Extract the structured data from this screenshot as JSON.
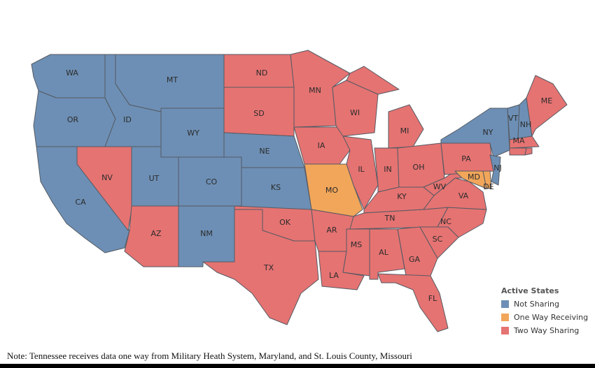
{
  "colors": {
    "not_sharing": "#6d8fb5",
    "one_way_receiving": "#f2a65a",
    "two_way_sharing": "#e57372",
    "border": "#555a63"
  },
  "legend": {
    "title": "Active States",
    "items": [
      {
        "label": "Not Sharing",
        "category": "not_sharing"
      },
      {
        "label": "One Way Receiving",
        "category": "one_way_receiving"
      },
      {
        "label": "Two Way Sharing",
        "category": "two_way_sharing"
      }
    ]
  },
  "note": "Note:  Tennessee receives data one way from Military Heath System, Maryland, and St. Louis County, Missouri",
  "states": {
    "WA": "not_sharing",
    "OR": "not_sharing",
    "CA": "not_sharing",
    "ID": "not_sharing",
    "MT": "not_sharing",
    "WY": "not_sharing",
    "UT": "not_sharing",
    "CO": "not_sharing",
    "NM": "not_sharing",
    "NE": "not_sharing",
    "KS": "not_sharing",
    "NY": "not_sharing",
    "VT": "not_sharing",
    "NH": "not_sharing",
    "NJ": "not_sharing",
    "MO": "one_way_receiving",
    "MD": "one_way_receiving",
    "DE": "one_way_receiving",
    "NV": "two_way_sharing",
    "AZ": "two_way_sharing",
    "ND": "two_way_sharing",
    "SD": "two_way_sharing",
    "MN": "two_way_sharing",
    "IA": "two_way_sharing",
    "WI": "two_way_sharing",
    "IL": "two_way_sharing",
    "MI": "two_way_sharing",
    "IN": "two_way_sharing",
    "OH": "two_way_sharing",
    "KY": "two_way_sharing",
    "TN": "two_way_sharing",
    "WV": "two_way_sharing",
    "VA": "two_way_sharing",
    "PA": "two_way_sharing",
    "ME": "two_way_sharing",
    "MA": "two_way_sharing",
    "NC": "two_way_sharing",
    "SC": "two_way_sharing",
    "GA": "two_way_sharing",
    "AL": "two_way_sharing",
    "MS": "two_way_sharing",
    "LA": "two_way_sharing",
    "AR": "two_way_sharing",
    "OK": "two_way_sharing",
    "TX": "two_way_sharing",
    "FL": "two_way_sharing",
    "CT": "two_way_sharing",
    "RI": "two_way_sharing"
  }
}
